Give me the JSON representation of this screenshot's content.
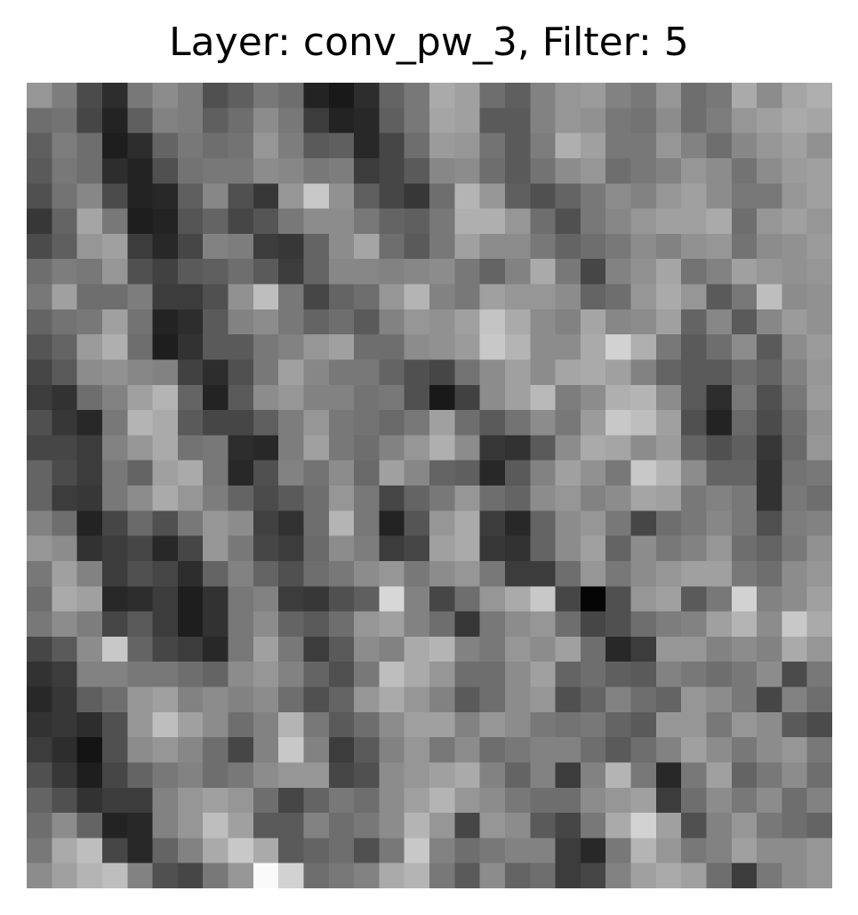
{
  "chart_data": {
    "type": "heatmap",
    "title": "Layer: conv_pw_3, Filter: 5",
    "colormap": "gray",
    "axes_visible": false,
    "grid": false,
    "rows": 32,
    "cols": 32,
    "value_range": [
      0,
      255
    ],
    "values": [
      [
        150,
        125,
        75,
        45,
        120,
        140,
        125,
        80,
        95,
        120,
        110,
        35,
        25,
        45,
        100,
        120,
        170,
        160,
        110,
        95,
        130,
        150,
        155,
        130,
        120,
        150,
        110,
        120,
        170,
        140,
        165,
        175
      ],
      [
        110,
        115,
        70,
        35,
        95,
        130,
        125,
        95,
        110,
        140,
        120,
        60,
        35,
        40,
        95,
        120,
        165,
        160,
        90,
        90,
        130,
        150,
        145,
        120,
        115,
        140,
        110,
        125,
        150,
        160,
        170,
        165
      ],
      [
        95,
        125,
        110,
        30,
        45,
        100,
        120,
        110,
        115,
        150,
        125,
        90,
        95,
        40,
        70,
        110,
        155,
        150,
        115,
        90,
        125,
        175,
        160,
        120,
        120,
        150,
        130,
        110,
        135,
        150,
        160,
        145
      ],
      [
        90,
        120,
        110,
        45,
        35,
        80,
        115,
        120,
        120,
        140,
        135,
        120,
        125,
        60,
        70,
        90,
        135,
        140,
        110,
        90,
        115,
        140,
        150,
        110,
        120,
        130,
        150,
        140,
        115,
        140,
        155,
        160
      ],
      [
        80,
        115,
        135,
        75,
        35,
        40,
        95,
        135,
        80,
        55,
        150,
        200,
        145,
        95,
        70,
        55,
        110,
        180,
        150,
        95,
        80,
        100,
        120,
        140,
        130,
        150,
        160,
        140,
        120,
        120,
        150,
        160
      ],
      [
        55,
        100,
        165,
        120,
        30,
        35,
        85,
        100,
        70,
        85,
        120,
        140,
        140,
        120,
        100,
        95,
        120,
        175,
        175,
        150,
        110,
        80,
        120,
        135,
        150,
        160,
        160,
        170,
        110,
        150,
        160,
        150
      ],
      [
        75,
        95,
        150,
        160,
        60,
        40,
        70,
        130,
        125,
        60,
        55,
        100,
        140,
        165,
        110,
        90,
        120,
        160,
        140,
        140,
        120,
        100,
        110,
        120,
        140,
        130,
        145,
        150,
        115,
        140,
        145,
        155
      ],
      [
        110,
        125,
        120,
        150,
        80,
        65,
        90,
        95,
        110,
        90,
        60,
        100,
        135,
        135,
        130,
        135,
        140,
        120,
        100,
        130,
        170,
        120,
        70,
        130,
        145,
        165,
        115,
        130,
        160,
        150,
        145,
        150
      ],
      [
        120,
        160,
        110,
        110,
        125,
        60,
        60,
        80,
        145,
        190,
        120,
        70,
        100,
        110,
        150,
        180,
        130,
        120,
        160,
        150,
        150,
        140,
        100,
        110,
        150,
        170,
        150,
        90,
        120,
        190,
        140,
        145
      ],
      [
        100,
        115,
        120,
        160,
        115,
        35,
        45,
        90,
        130,
        140,
        120,
        100,
        110,
        90,
        130,
        150,
        145,
        160,
        195,
        170,
        140,
        130,
        165,
        135,
        140,
        160,
        100,
        135,
        90,
        135,
        155,
        145
      ],
      [
        85,
        100,
        155,
        175,
        110,
        30,
        50,
        90,
        90,
        120,
        130,
        150,
        160,
        110,
        110,
        140,
        145,
        155,
        200,
        180,
        140,
        140,
        170,
        210,
        175,
        120,
        90,
        110,
        140,
        90,
        140,
        155
      ],
      [
        70,
        90,
        140,
        145,
        135,
        130,
        65,
        45,
        80,
        120,
        160,
        135,
        120,
        120,
        100,
        80,
        70,
        115,
        140,
        160,
        140,
        165,
        170,
        160,
        130,
        100,
        90,
        90,
        110,
        100,
        130,
        150
      ],
      [
        60,
        50,
        110,
        130,
        160,
        180,
        100,
        35,
        90,
        140,
        150,
        130,
        130,
        115,
        120,
        80,
        25,
        65,
        140,
        160,
        185,
        125,
        140,
        175,
        180,
        140,
        90,
        45,
        120,
        80,
        120,
        155
      ],
      [
        80,
        55,
        40,
        120,
        180,
        170,
        90,
        70,
        70,
        95,
        125,
        150,
        120,
        115,
        105,
        120,
        160,
        110,
        90,
        115,
        140,
        120,
        155,
        200,
        190,
        160,
        80,
        35,
        105,
        75,
        110,
        145
      ],
      [
        70,
        70,
        60,
        130,
        150,
        170,
        115,
        120,
        45,
        40,
        125,
        160,
        120,
        110,
        130,
        150,
        175,
        140,
        55,
        50,
        90,
        140,
        170,
        165,
        140,
        155,
        100,
        80,
        95,
        55,
        105,
        150
      ],
      [
        100,
        75,
        60,
        120,
        100,
        160,
        170,
        120,
        40,
        80,
        130,
        115,
        140,
        105,
        160,
        135,
        100,
        95,
        40,
        90,
        130,
        160,
        145,
        120,
        200,
        180,
        140,
        100,
        100,
        50,
        115,
        120
      ],
      [
        100,
        60,
        55,
        120,
        140,
        170,
        150,
        125,
        100,
        75,
        90,
        110,
        150,
        120,
        70,
        100,
        120,
        150,
        110,
        100,
        140,
        150,
        130,
        140,
        165,
        160,
        120,
        130,
        120,
        50,
        120,
        110
      ],
      [
        130,
        110,
        35,
        70,
        105,
        80,
        120,
        150,
        140,
        65,
        50,
        110,
        180,
        120,
        35,
        85,
        150,
        170,
        60,
        40,
        100,
        140,
        150,
        120,
        70,
        110,
        120,
        135,
        120,
        80,
        125,
        130
      ],
      [
        150,
        140,
        50,
        60,
        70,
        40,
        70,
        150,
        120,
        70,
        60,
        105,
        140,
        125,
        60,
        70,
        160,
        170,
        55,
        50,
        100,
        140,
        160,
        100,
        140,
        120,
        130,
        150,
        110,
        100,
        120,
        145
      ],
      [
        120,
        160,
        130,
        60,
        80,
        70,
        45,
        100,
        130,
        100,
        80,
        110,
        120,
        140,
        150,
        120,
        140,
        150,
        120,
        60,
        60,
        110,
        150,
        120,
        140,
        150,
        160,
        160,
        120,
        110,
        140,
        150
      ],
      [
        110,
        170,
        160,
        40,
        45,
        60,
        30,
        50,
        120,
        130,
        60,
        55,
        80,
        95,
        215,
        130,
        70,
        110,
        150,
        170,
        200,
        70,
        5,
        80,
        150,
        160,
        90,
        120,
        210,
        130,
        140,
        160
      ],
      [
        120,
        140,
        125,
        70,
        90,
        60,
        30,
        50,
        120,
        140,
        100,
        90,
        110,
        150,
        160,
        130,
        110,
        55,
        120,
        140,
        150,
        110,
        70,
        80,
        110,
        125,
        130,
        160,
        180,
        140,
        200,
        170
      ],
      [
        70,
        90,
        140,
        200,
        100,
        70,
        60,
        40,
        120,
        160,
        120,
        60,
        90,
        140,
        130,
        170,
        180,
        130,
        120,
        150,
        140,
        160,
        110,
        40,
        60,
        150,
        150,
        130,
        140,
        130,
        170,
        150
      ],
      [
        50,
        60,
        130,
        130,
        120,
        120,
        110,
        100,
        140,
        150,
        130,
        100,
        80,
        120,
        190,
        170,
        150,
        110,
        110,
        140,
        160,
        100,
        110,
        95,
        90,
        130,
        120,
        110,
        120,
        140,
        75,
        120
      ],
      [
        40,
        55,
        95,
        110,
        150,
        160,
        130,
        140,
        130,
        140,
        110,
        80,
        100,
        150,
        170,
        150,
        130,
        90,
        110,
        140,
        150,
        80,
        100,
        130,
        110,
        100,
        150,
        140,
        120,
        70,
        130,
        110
      ],
      [
        50,
        55,
        45,
        80,
        150,
        190,
        160,
        140,
        110,
        130,
        180,
        120,
        90,
        110,
        140,
        160,
        160,
        130,
        150,
        140,
        120,
        115,
        120,
        100,
        90,
        150,
        150,
        120,
        150,
        140,
        90,
        75
      ],
      [
        60,
        45,
        20,
        80,
        140,
        150,
        135,
        110,
        70,
        130,
        200,
        130,
        60,
        90,
        130,
        150,
        120,
        140,
        110,
        120,
        130,
        130,
        110,
        90,
        110,
        130,
        160,
        140,
        120,
        140,
        150,
        120
      ],
      [
        80,
        55,
        30,
        70,
        100,
        120,
        130,
        110,
        120,
        140,
        150,
        150,
        70,
        80,
        140,
        150,
        160,
        170,
        130,
        100,
        130,
        60,
        130,
        180,
        120,
        40,
        120,
        160,
        100,
        120,
        140,
        110
      ],
      [
        100,
        80,
        50,
        60,
        60,
        130,
        150,
        160,
        150,
        110,
        70,
        100,
        120,
        110,
        140,
        160,
        180,
        150,
        140,
        120,
        110,
        110,
        140,
        150,
        160,
        60,
        110,
        140,
        120,
        140,
        110,
        130
      ],
      [
        110,
        140,
        100,
        35,
        40,
        130,
        150,
        190,
        160,
        90,
        90,
        130,
        110,
        120,
        140,
        180,
        150,
        70,
        150,
        140,
        90,
        70,
        120,
        170,
        210,
        160,
        80,
        130,
        150,
        120,
        110,
        100
      ],
      [
        120,
        170,
        190,
        70,
        40,
        100,
        130,
        170,
        200,
        170,
        90,
        100,
        110,
        80,
        120,
        200,
        130,
        110,
        120,
        130,
        130,
        60,
        40,
        120,
        180,
        150,
        120,
        130,
        160,
        140,
        140,
        150
      ],
      [
        140,
        160,
        180,
        190,
        130,
        80,
        70,
        120,
        150,
        250,
        210,
        110,
        120,
        130,
        170,
        180,
        120,
        90,
        140,
        100,
        110,
        60,
        70,
        130,
        160,
        170,
        160,
        110,
        60,
        120,
        140,
        150
      ]
    ]
  }
}
